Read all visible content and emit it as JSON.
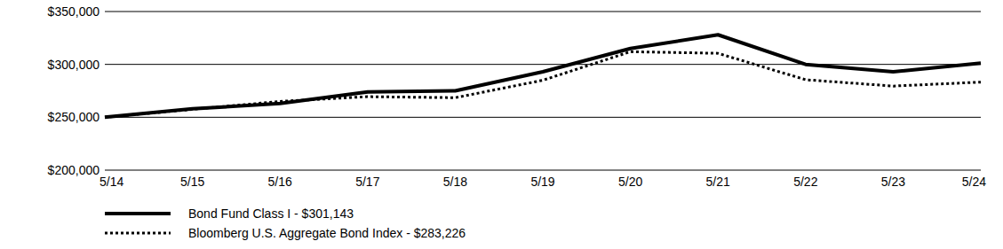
{
  "chart_data": {
    "type": "line",
    "categories": [
      "5/14",
      "5/15",
      "5/16",
      "5/17",
      "5/18",
      "5/19",
      "5/20",
      "5/21",
      "5/22",
      "5/23",
      "5/24"
    ],
    "series": [
      {
        "name": "Bond Fund Class I - $301,143",
        "color": "#000000",
        "line_style": "solid",
        "values": [
          250000,
          258000,
          263000,
          274000,
          275000,
          293000,
          315000,
          328000,
          300000,
          293000,
          301143
        ]
      },
      {
        "name": "Bloomberg U.S. Aggregate Bond Index - $283,226",
        "color": "#000000",
        "line_style": "dotted",
        "values": [
          250000,
          257500,
          265000,
          269500,
          268500,
          285000,
          312000,
          310500,
          285500,
          279500,
          283226
        ]
      }
    ],
    "ylim": [
      200000,
      350000
    ],
    "yticks": [
      {
        "value": 200000,
        "label": "$200,000"
      },
      {
        "value": 250000,
        "label": "$250,000"
      },
      {
        "value": 300000,
        "label": "$300,000"
      },
      {
        "value": 350000,
        "label": "$350,000"
      }
    ],
    "grid": true,
    "legend": "bottom-left"
  }
}
